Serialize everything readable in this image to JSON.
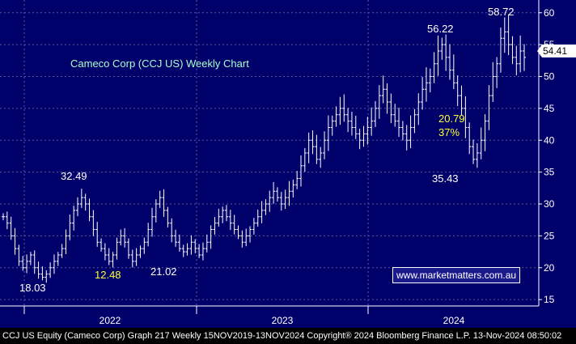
{
  "chart_data": {
    "type": "bar",
    "subtype": "ohlc-weekly",
    "title": "Cameco Corp  (CCJ US) Weekly Chart",
    "y_ticks": [
      15,
      20,
      25,
      30,
      35,
      40,
      45,
      50,
      55,
      60
    ],
    "ylim": [
      14,
      62
    ],
    "x_ticks": [
      "2022",
      "2023",
      "2024"
    ],
    "last_price": "54.41",
    "annotations": [
      {
        "text": "32.49",
        "color": "#ffffff"
      },
      {
        "text": "18.03",
        "color": "#ffffff"
      },
      {
        "text": "12.48",
        "color": "#ffff33"
      },
      {
        "text": "21.02",
        "color": "#ffffff"
      },
      {
        "text": "56.22",
        "color": "#ffffff"
      },
      {
        "text": "20.79",
        "color": "#ffff33"
      },
      {
        "text": "37%",
        "color": "#ffff33"
      },
      {
        "text": "35.43",
        "color": "#ffffff"
      },
      {
        "text": "58.72",
        "color": "#ffffff"
      }
    ],
    "closes": [
      28,
      27,
      25,
      23,
      21,
      20,
      21,
      22,
      20,
      19,
      18.5,
      19,
      20,
      21,
      22,
      23,
      25,
      27,
      29,
      30,
      31,
      30,
      28,
      26,
      24,
      23,
      22,
      21,
      22,
      24,
      25,
      24,
      22,
      21,
      22,
      23,
      24,
      26,
      28,
      30,
      31,
      29,
      27,
      25,
      24,
      23,
      22.5,
      23,
      24,
      23,
      22,
      23,
      24,
      26,
      27,
      28,
      29,
      28,
      27,
      26,
      25,
      24,
      25,
      26,
      27,
      28,
      29,
      30,
      31,
      32,
      31,
      30,
      31,
      32,
      33,
      34,
      36,
      38,
      40,
      39,
      37,
      38,
      40,
      42,
      43,
      44,
      45,
      44,
      43,
      42,
      41,
      40,
      41,
      42,
      43,
      45,
      47,
      48,
      46,
      44,
      43,
      42,
      41,
      40,
      42,
      44,
      46,
      48,
      49,
      50,
      52,
      54,
      55,
      53,
      51,
      49,
      47,
      45,
      42,
      39,
      37,
      38,
      40,
      43,
      47,
      50,
      52,
      56,
      57,
      55,
      53,
      52,
      54,
      53
    ]
  },
  "footer_text": "CCJ US Equity (Cameco Corp) Graph 217  Weekly 15NOV2019-13NOV2024 Copyright® 2024 Bloomberg Finance L.P. 13-Nov-2024 08:50:02",
  "watermark_text": "www.marketmatters.com.au",
  "colors": {
    "background": "#00006a",
    "bars": "#ffffff",
    "grid": "#5a5a9a",
    "highlight": "#ffff33",
    "title": "#aaffcc"
  }
}
